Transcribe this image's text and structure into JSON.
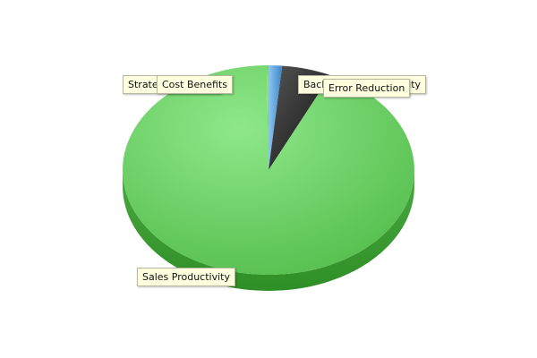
{
  "chart_data": {
    "type": "pie",
    "title": "",
    "slices": [
      {
        "label": "Back Office Productivity",
        "value": 1.5,
        "color": "#5b9bd5"
      },
      {
        "label": "Error Reduction",
        "value": 5.5,
        "color": "#2b2b2b"
      },
      {
        "label": "Sales Productivity",
        "value": 92.8,
        "color": "#5cc65c"
      },
      {
        "label": "Strategic Benefits",
        "value": 0.1,
        "color": "#7fd07f"
      },
      {
        "label": "Cost Benefits",
        "value": 0.1,
        "color": "#6fcb6f"
      }
    ],
    "legend": "none",
    "style": "3d"
  }
}
